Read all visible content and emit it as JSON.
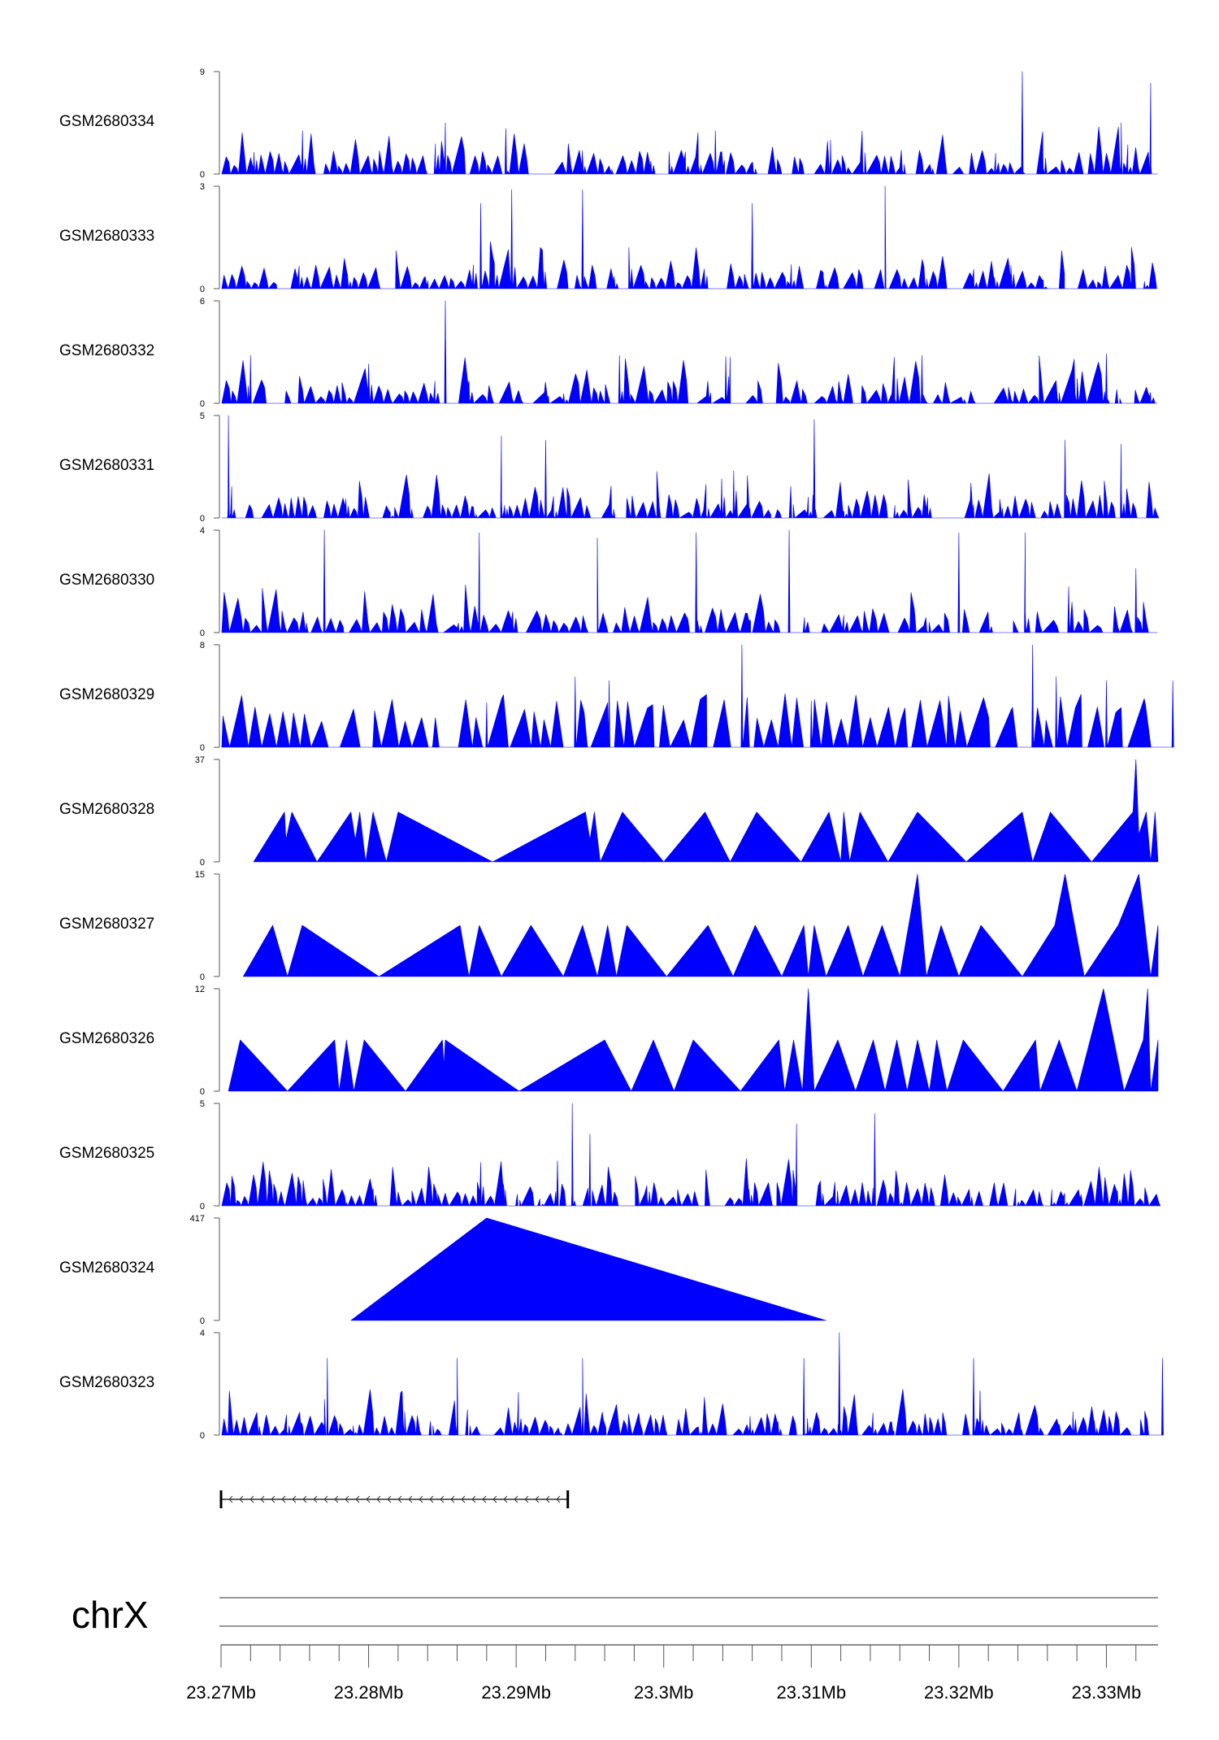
{
  "chart_data": {
    "type": "area",
    "title": "",
    "chromosome": "chrX",
    "xlabel": "",
    "ylabel": "",
    "xlim": [
      23.27,
      23.3335
    ],
    "x_unit": "Mb",
    "color": "#0000ff",
    "x_ticks": [
      {
        "value": 23.27,
        "label": "23.27Mb"
      },
      {
        "value": 23.28,
        "label": "23.28Mb"
      },
      {
        "value": 23.29,
        "label": "23.29Mb"
      },
      {
        "value": 23.3,
        "label": "23.3Mb"
      },
      {
        "value": 23.31,
        "label": "23.31Mb"
      },
      {
        "value": 23.32,
        "label": "23.32Mb"
      },
      {
        "value": 23.33,
        "label": "23.33Mb"
      }
    ],
    "gene": {
      "start": 23.27,
      "end": 23.2935,
      "strand": "-"
    },
    "tracks": [
      {
        "name": "GSM2680334",
        "ymax": 9,
        "ymin": 0,
        "style": "dense",
        "density": 120,
        "peaks": [
          [
            23.2852,
            4.5
          ],
          [
            23.2893,
            4.0
          ],
          [
            23.3035,
            3.8
          ],
          [
            23.3113,
            3.0
          ],
          [
            23.3243,
            9.0
          ],
          [
            23.331,
            4.5
          ],
          [
            23.333,
            8.0
          ]
        ]
      },
      {
        "name": "GSM2680333",
        "ymax": 3,
        "ymin": 0,
        "style": "dense",
        "density": 120,
        "peaks": [
          [
            23.2897,
            2.9
          ],
          [
            23.2945,
            2.9
          ],
          [
            23.315,
            3.0
          ],
          [
            23.306,
            2.5
          ],
          [
            23.2876,
            2.5
          ]
        ]
      },
      {
        "name": "GSM2680332",
        "ymax": 6,
        "ymin": 0,
        "style": "dense",
        "density": 110,
        "peaks": [
          [
            23.2852,
            6.0
          ],
          [
            23.297,
            2.8
          ],
          [
            23.3045,
            2.7
          ],
          [
            23.3175,
            2.8
          ],
          [
            23.33,
            2.9
          ],
          [
            23.272,
            2.8
          ]
        ]
      },
      {
        "name": "GSM2680331",
        "ymax": 5,
        "ymin": 0,
        "style": "dense",
        "density": 130,
        "peaks": [
          [
            23.2705,
            5.0
          ],
          [
            23.289,
            4.0
          ],
          [
            23.3102,
            4.8
          ],
          [
            23.3272,
            3.8
          ],
          [
            23.331,
            3.6
          ],
          [
            23.292,
            3.8
          ]
        ]
      },
      {
        "name": "GSM2680330",
        "ymax": 4,
        "ymin": 0,
        "style": "dense",
        "density": 100,
        "peaks": [
          [
            23.277,
            4.0
          ],
          [
            23.2875,
            3.9
          ],
          [
            23.2955,
            3.7
          ],
          [
            23.3022,
            3.9
          ],
          [
            23.3085,
            4.0
          ],
          [
            23.32,
            3.9
          ],
          [
            23.3245,
            3.9
          ],
          [
            23.332,
            2.5
          ]
        ]
      },
      {
        "name": "GSM2680329",
        "ymax": 8,
        "ymin": 0,
        "style": "sparse",
        "density": 70,
        "peaks": [
          [
            23.288,
            3.5
          ],
          [
            23.294,
            5.5
          ],
          [
            23.2963,
            5.2
          ],
          [
            23.3053,
            8.0
          ],
          [
            23.31,
            3.6
          ],
          [
            23.325,
            8.0
          ],
          [
            23.3266,
            5.5
          ],
          [
            23.33,
            5.2
          ],
          [
            23.3345,
            5.2
          ]
        ]
      },
      {
        "name": "GSM2680328",
        "ymax": 37,
        "ymin": 0,
        "style": "triangles",
        "points": [
          [
            23.2722,
            0
          ],
          [
            23.2743,
            18
          ],
          [
            23.2744,
            8
          ],
          [
            23.2748,
            18
          ],
          [
            23.2765,
            0
          ],
          [
            23.2788,
            18
          ],
          [
            23.2791,
            8
          ],
          [
            23.2794,
            18
          ],
          [
            23.2798,
            0
          ],
          [
            23.2803,
            18
          ],
          [
            23.2812,
            0
          ],
          [
            23.282,
            18
          ],
          [
            23.2884,
            0
          ],
          [
            23.2947,
            18
          ],
          [
            23.295,
            8
          ],
          [
            23.2953,
            18
          ],
          [
            23.2957,
            0
          ],
          [
            23.2972,
            18
          ],
          [
            23.3,
            0
          ],
          [
            23.3028,
            18
          ],
          [
            23.3045,
            0
          ],
          [
            23.3063,
            18
          ],
          [
            23.3093,
            0
          ],
          [
            23.3112,
            18
          ],
          [
            23.312,
            0
          ],
          [
            23.3122,
            18
          ],
          [
            23.3126,
            0
          ],
          [
            23.3133,
            18
          ],
          [
            23.3152,
            0
          ],
          [
            23.3172,
            18
          ],
          [
            23.3205,
            0
          ],
          [
            23.3243,
            18
          ],
          [
            23.325,
            0
          ],
          [
            23.3262,
            18
          ],
          [
            23.329,
            0
          ],
          [
            23.3318,
            18
          ],
          [
            23.332,
            37
          ],
          [
            23.3322,
            10
          ],
          [
            23.3327,
            18
          ],
          [
            23.333,
            0
          ],
          [
            23.3333,
            18
          ],
          [
            23.3335,
            0
          ]
        ]
      },
      {
        "name": "GSM2680327",
        "ymax": 15,
        "ymin": 0,
        "style": "triangles",
        "points": [
          [
            23.2715,
            0
          ],
          [
            23.2735,
            7.5
          ],
          [
            23.2745,
            0
          ],
          [
            23.2755,
            7.5
          ],
          [
            23.2807,
            0
          ],
          [
            23.2862,
            7.5
          ],
          [
            23.2868,
            0
          ],
          [
            23.2875,
            7.5
          ],
          [
            23.289,
            0
          ],
          [
            23.291,
            7.5
          ],
          [
            23.2932,
            0
          ],
          [
            23.2945,
            7.5
          ],
          [
            23.2955,
            0
          ],
          [
            23.2962,
            7.5
          ],
          [
            23.2968,
            0
          ],
          [
            23.2975,
            7.5
          ],
          [
            23.3002,
            0
          ],
          [
            23.303,
            7.5
          ],
          [
            23.3047,
            0
          ],
          [
            23.3062,
            7.5
          ],
          [
            23.308,
            0
          ],
          [
            23.3095,
            7.5
          ],
          [
            23.3098,
            0
          ],
          [
            23.3102,
            7.5
          ],
          [
            23.311,
            0
          ],
          [
            23.3125,
            7.5
          ],
          [
            23.3135,
            0
          ],
          [
            23.3148,
            7.5
          ],
          [
            23.316,
            0
          ],
          [
            23.3172,
            15
          ],
          [
            23.3178,
            0
          ],
          [
            23.3188,
            7.5
          ],
          [
            23.32,
            0
          ],
          [
            23.3215,
            7.5
          ],
          [
            23.3243,
            0
          ],
          [
            23.3265,
            7.5
          ],
          [
            23.3272,
            15
          ],
          [
            23.3285,
            0
          ],
          [
            23.3308,
            7.5
          ],
          [
            23.3322,
            15
          ],
          [
            23.333,
            0
          ],
          [
            23.3335,
            7.5
          ]
        ]
      },
      {
        "name": "GSM2680326",
        "ymax": 12,
        "ymin": 0,
        "style": "triangles",
        "points": [
          [
            23.2705,
            0
          ],
          [
            23.2713,
            6
          ],
          [
            23.2745,
            0
          ],
          [
            23.2777,
            6
          ],
          [
            23.278,
            0
          ],
          [
            23.2785,
            6
          ],
          [
            23.279,
            0
          ],
          [
            23.2797,
            6
          ],
          [
            23.2825,
            0
          ],
          [
            23.285,
            6
          ],
          [
            23.2851,
            3
          ],
          [
            23.2852,
            6
          ],
          [
            23.2902,
            0
          ],
          [
            23.296,
            6
          ],
          [
            23.2978,
            0
          ],
          [
            23.2993,
            6
          ],
          [
            23.3007,
            0
          ],
          [
            23.302,
            6
          ],
          [
            23.3052,
            0
          ],
          [
            23.3078,
            6
          ],
          [
            23.3082,
            0
          ],
          [
            23.3088,
            6
          ],
          [
            23.3094,
            0
          ],
          [
            23.3098,
            12
          ],
          [
            23.3102,
            0
          ],
          [
            23.3118,
            6
          ],
          [
            23.313,
            0
          ],
          [
            23.3142,
            6
          ],
          [
            23.315,
            0
          ],
          [
            23.3158,
            6
          ],
          [
            23.3165,
            0
          ],
          [
            23.3172,
            6
          ],
          [
            23.318,
            0
          ],
          [
            23.3185,
            6
          ],
          [
            23.3192,
            0
          ],
          [
            23.3203,
            6
          ],
          [
            23.323,
            0
          ],
          [
            23.3252,
            6
          ],
          [
            23.3255,
            0
          ],
          [
            23.3268,
            6
          ],
          [
            23.328,
            0
          ],
          [
            23.3298,
            12
          ],
          [
            23.3312,
            0
          ],
          [
            23.3325,
            6
          ],
          [
            23.3328,
            12
          ],
          [
            23.333,
            0
          ],
          [
            23.3335,
            6
          ]
        ]
      },
      {
        "name": "GSM2680325",
        "ymax": 5,
        "ymin": 0,
        "style": "dense",
        "density": 130,
        "peaks": [
          [
            23.2938,
            5.0
          ],
          [
            23.2928,
            2.2
          ],
          [
            23.309,
            4.0
          ],
          [
            23.3143,
            4.5
          ],
          [
            23.295,
            3.5
          ]
        ]
      },
      {
        "name": "GSM2680324",
        "ymax": 417,
        "ymin": 0,
        "style": "triangles",
        "points": [
          [
            23.2788,
            0
          ],
          [
            23.288,
            417
          ],
          [
            23.311,
            0
          ]
        ]
      },
      {
        "name": "GSM2680323",
        "ymax": 4,
        "ymin": 0,
        "style": "dense",
        "density": 130,
        "peaks": [
          [
            23.2772,
            3.0
          ],
          [
            23.286,
            3.0
          ],
          [
            23.2945,
            3.0
          ],
          [
            23.3095,
            3.0
          ],
          [
            23.3119,
            4.0
          ],
          [
            23.321,
            3.0
          ],
          [
            23.3338,
            3.0
          ]
        ]
      }
    ]
  }
}
